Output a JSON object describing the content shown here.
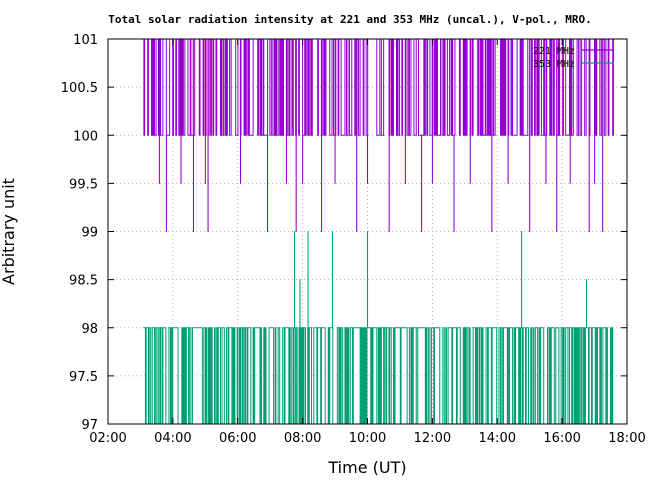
{
  "chart_data": {
    "type": "line",
    "title": "Total solar radiation intensity at 221 and 353 MHz (uncal.), V-pol., MRO.",
    "xlabel": "Time (UT)",
    "ylabel": "Arbitrary unit",
    "xlim": [
      "02:00",
      "18:00"
    ],
    "ylim": [
      97,
      101
    ],
    "x_ticks": [
      "02:00",
      "04:00",
      "06:00",
      "08:00",
      "10:00",
      "12:00",
      "14:00",
      "16:00",
      "18:00"
    ],
    "y_ticks": [
      "97",
      "97.5",
      "98",
      "98.5",
      "99",
      "99.5",
      "100",
      "100.5",
      "101"
    ],
    "grid": true,
    "legend_position": "top-right",
    "x_range_of_data": [
      "03:05",
      "17:35"
    ],
    "series": [
      {
        "name": "221 MHz",
        "color": "#9400d3",
        "levels": [
          100,
          101
        ],
        "level_counts": [
          2,
          3
        ],
        "dips": [
          {
            "x": "03:35",
            "y": 99.5
          },
          {
            "x": "03:48",
            "y": 99
          },
          {
            "x": "04:15",
            "y": 99.5
          },
          {
            "x": "04:38",
            "y": 99
          },
          {
            "x": "05:00",
            "y": 99.5
          },
          {
            "x": "05:05",
            "y": 99
          },
          {
            "x": "06:05",
            "y": 99.5
          },
          {
            "x": "06:55",
            "y": 99
          },
          {
            "x": "07:30",
            "y": 99.5
          },
          {
            "x": "07:48",
            "y": 99
          },
          {
            "x": "08:00",
            "y": 99.5
          },
          {
            "x": "08:35",
            "y": 99
          },
          {
            "x": "09:00",
            "y": 99.5
          },
          {
            "x": "09:40",
            "y": 99
          },
          {
            "x": "10:00",
            "y": 99.5
          },
          {
            "x": "10:40",
            "y": 99
          },
          {
            "x": "11:10",
            "y": 99.5
          },
          {
            "x": "11:40",
            "y": 99
          },
          {
            "x": "12:00",
            "y": 99.5
          },
          {
            "x": "12:40",
            "y": 99
          },
          {
            "x": "13:10",
            "y": 99.5
          },
          {
            "x": "13:50",
            "y": 99
          },
          {
            "x": "14:20",
            "y": 99.5
          },
          {
            "x": "15:00",
            "y": 99
          },
          {
            "x": "15:30",
            "y": 99.5
          },
          {
            "x": "15:50",
            "y": 99
          },
          {
            "x": "16:15",
            "y": 99.5
          },
          {
            "x": "16:50",
            "y": 99
          },
          {
            "x": "17:00",
            "y": 99.5
          },
          {
            "x": "17:15",
            "y": 99
          }
        ]
      },
      {
        "name": "353 MHz",
        "color": "#009e73",
        "levels": [
          97,
          98
        ],
        "level_counts": [
          2,
          3
        ],
        "spikes": [
          {
            "x": "07:45",
            "y": 99
          },
          {
            "x": "07:55",
            "y": 98.5
          },
          {
            "x": "08:10",
            "y": 99
          },
          {
            "x": "08:55",
            "y": 99
          },
          {
            "x": "10:00",
            "y": 99
          },
          {
            "x": "14:45",
            "y": 99
          },
          {
            "x": "16:45",
            "y": 98.5
          }
        ]
      }
    ]
  }
}
